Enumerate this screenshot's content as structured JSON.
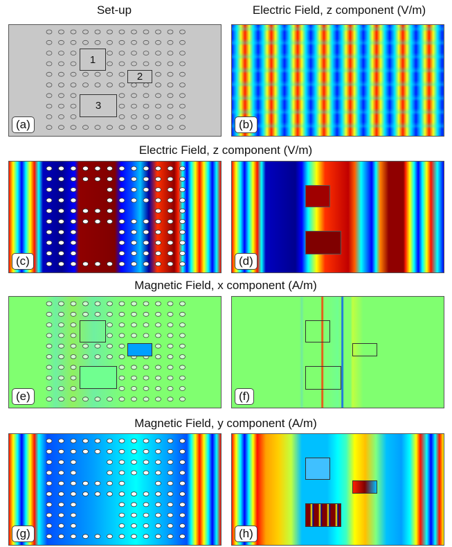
{
  "titles": [
    "Set-up",
    "Electric Field, z component (V/m)",
    "Electric Field, z component (V/m)",
    "Magnetic Field, x component (A/m)",
    "Magnetic Field, y component (A/m)"
  ],
  "panels": [
    {
      "label": "(a)"
    },
    {
      "label": "(b)"
    },
    {
      "label": "(c)"
    },
    {
      "label": "(d)"
    },
    {
      "label": "(e)"
    },
    {
      "label": "(f)"
    },
    {
      "label": "(g)"
    },
    {
      "label": "(h)"
    }
  ],
  "boxes": [
    "1",
    "2",
    "3"
  ]
}
